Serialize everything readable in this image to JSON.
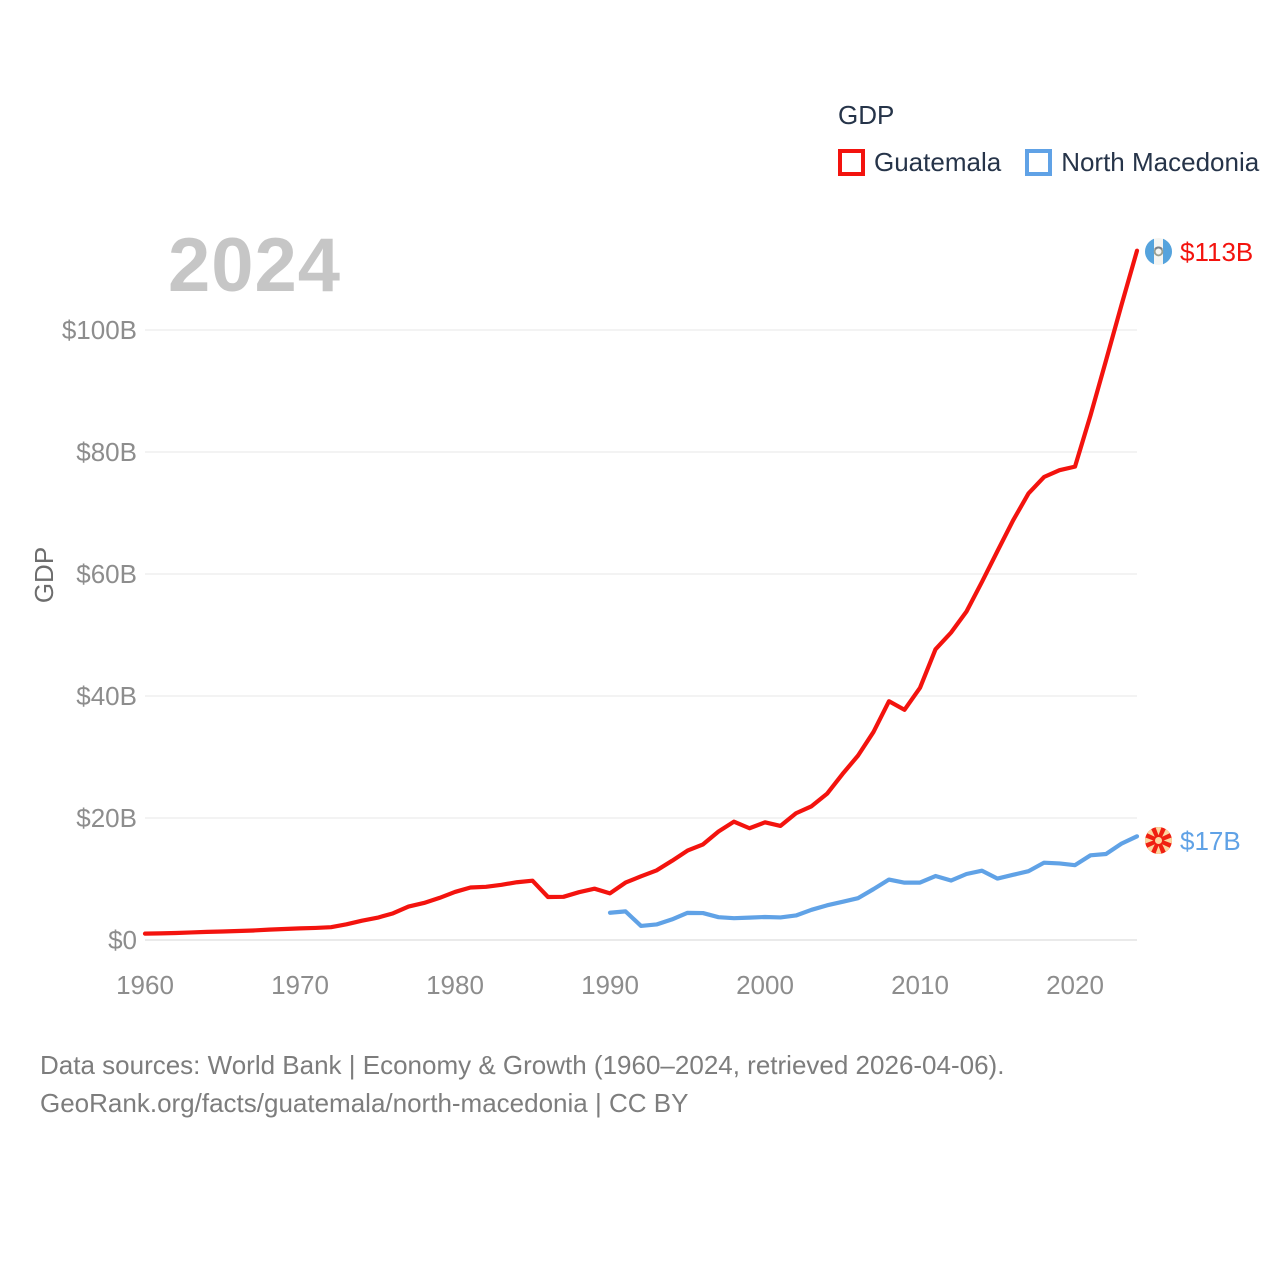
{
  "watermark_year": "2024",
  "legend": {
    "title": "GDP",
    "items": [
      {
        "label": "Guatemala",
        "color": "#f3130e"
      },
      {
        "label": "North Macedonia",
        "color": "#60a2e6"
      }
    ]
  },
  "y_axis": {
    "title": "GDP",
    "ticks": [
      {
        "value": 0,
        "label": "$0"
      },
      {
        "value": 20,
        "label": "$20B"
      },
      {
        "value": 40,
        "label": "$40B"
      },
      {
        "value": 60,
        "label": "$60B"
      },
      {
        "value": 80,
        "label": "$80B"
      },
      {
        "value": 100,
        "label": "$100B"
      }
    ]
  },
  "x_axis": {
    "ticks": [
      1960,
      1970,
      1980,
      1990,
      2000,
      2010,
      2020
    ]
  },
  "footer": {
    "line1": "Data sources: World Bank | Economy & Growth (1960–2024, retrieved 2026-04-06).",
    "line2": "GeoRank.org/facts/guatemala/north-macedonia | CC BY"
  },
  "colors": {
    "guatemala": "#f3130e",
    "north_macedonia": "#60a2e6",
    "gridline": "#efefef",
    "axis_text": "#8d8d8d",
    "legend_text": "#263449",
    "watermark": "#c6c6c6"
  },
  "chart_data": {
    "type": "line",
    "title": "GDP",
    "xlabel": "",
    "ylabel": "GDP",
    "xlim": [
      1960,
      2024
    ],
    "ylim": [
      0,
      115
    ],
    "grid": "horizontal",
    "legend_position": "top-right",
    "year_badge": "2024",
    "series": [
      {
        "name": "Guatemala",
        "color": "#f3130e",
        "end_label": "$113B",
        "end_flag": "guatemala-flag-icon",
        "years": [
          1960,
          1961,
          1962,
          1963,
          1964,
          1965,
          1966,
          1967,
          1968,
          1969,
          1970,
          1971,
          1972,
          1973,
          1974,
          1975,
          1976,
          1977,
          1978,
          1979,
          1980,
          1981,
          1982,
          1983,
          1984,
          1985,
          1986,
          1987,
          1988,
          1989,
          1990,
          1991,
          1992,
          1993,
          1994,
          1995,
          1996,
          1997,
          1998,
          1999,
          2000,
          2001,
          2002,
          2003,
          2004,
          2005,
          2006,
          2007,
          2008,
          2009,
          2010,
          2011,
          2012,
          2013,
          2014,
          2015,
          2016,
          2017,
          2018,
          2019,
          2020,
          2021,
          2022,
          2023,
          2024
        ],
        "values": [
          1.04,
          1.09,
          1.15,
          1.24,
          1.33,
          1.39,
          1.47,
          1.56,
          1.7,
          1.8,
          1.9,
          1.98,
          2.1,
          2.57,
          3.16,
          3.65,
          4.37,
          5.48,
          6.07,
          6.9,
          7.88,
          8.61,
          8.72,
          9.05,
          9.47,
          9.72,
          7.05,
          7.08,
          7.84,
          8.41,
          7.65,
          9.41,
          10.44,
          11.4,
          12.98,
          14.66,
          15.67,
          17.79,
          19.4,
          18.32,
          19.29,
          18.7,
          20.78,
          21.92,
          23.97,
          27.21,
          30.23,
          34.11,
          39.14,
          37.73,
          41.34,
          47.65,
          50.39,
          53.85,
          58.72,
          63.77,
          68.76,
          73.2,
          75.9,
          77.02,
          77.6,
          86.0,
          95.0,
          104.1,
          113.0
        ]
      },
      {
        "name": "North Macedonia",
        "color": "#60a2e6",
        "end_label": "$17B",
        "end_flag": "north-macedonia-flag-icon",
        "years": [
          1990,
          1991,
          1992,
          1993,
          1994,
          1995,
          1996,
          1997,
          1998,
          1999,
          2000,
          2001,
          2002,
          2003,
          2004,
          2005,
          2006,
          2007,
          2008,
          2009,
          2010,
          2011,
          2012,
          2013,
          2014,
          2015,
          2016,
          2017,
          2018,
          2019,
          2020,
          2021,
          2022,
          2023,
          2024
        ],
        "values": [
          4.47,
          4.69,
          2.31,
          2.55,
          3.38,
          4.45,
          4.42,
          3.74,
          3.58,
          3.67,
          3.77,
          3.7,
          4.02,
          4.95,
          5.68,
          6.26,
          6.86,
          8.34,
          9.91,
          9.4,
          9.41,
          10.49,
          9.75,
          10.82,
          11.36,
          10.07,
          10.68,
          11.28,
          12.67,
          12.55,
          12.27,
          13.88,
          14.1,
          15.8,
          17.0
        ]
      }
    ]
  }
}
